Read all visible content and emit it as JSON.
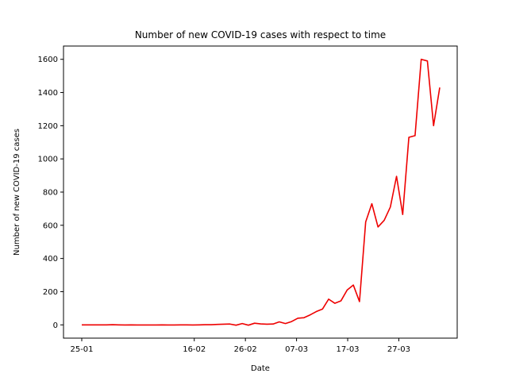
{
  "chart_data": {
    "type": "line",
    "title": "Number of new COVID-19 cases with respect to time",
    "xlabel": "Date",
    "ylabel": "Number of new COVID-19 cases",
    "x_ticks": [
      "25-01",
      "16-02",
      "26-02",
      "07-03",
      "17-03",
      "27-03"
    ],
    "y_ticks": [
      0,
      200,
      400,
      600,
      800,
      1000,
      1200,
      1400,
      1600
    ],
    "ylim": [
      -80,
      1680
    ],
    "grid": false,
    "line_color": "#ee0000",
    "series": [
      {
        "values": [
          0,
          0,
          0,
          0,
          0,
          1,
          0,
          -1,
          0,
          -1,
          -1,
          -1,
          -1,
          0,
          -1,
          -1,
          0,
          0,
          -1,
          0,
          1,
          1,
          3,
          4,
          5,
          -2,
          8,
          -2,
          10,
          6,
          4,
          5,
          18,
          8,
          20,
          40,
          43,
          60,
          80,
          95,
          155,
          130,
          145,
          210,
          240,
          140,
          620,
          730,
          590,
          630,
          710,
          895,
          665,
          1130,
          1140,
          1600,
          1590,
          1200,
          1430
        ]
      }
    ]
  }
}
